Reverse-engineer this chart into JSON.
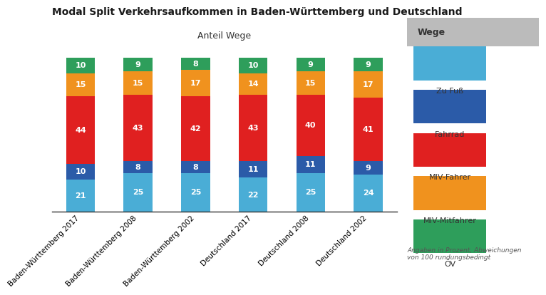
{
  "title": "Modal Split Verkehrsaufkommen in Baden-Württemberg und Deutschland",
  "subtitle": "Anteil Wege",
  "categories": [
    "Baden-Württemberg 2017",
    "Baden-Württemberg 2008",
    "Baden-Württemberg 2002",
    "Deutschland 2017",
    "Deutschland 2008",
    "Deutschland 2002"
  ],
  "segments": {
    "zu_fuss": [
      21,
      25,
      25,
      22,
      25,
      24
    ],
    "fahrrad": [
      10,
      8,
      8,
      11,
      11,
      9
    ],
    "miv_fahrer": [
      44,
      43,
      42,
      43,
      40,
      41
    ],
    "miv_mitfahr": [
      15,
      15,
      17,
      14,
      15,
      17
    ],
    "oev": [
      10,
      9,
      8,
      10,
      9,
      9
    ]
  },
  "colors": {
    "zu_fuss": "#4AADD6",
    "fahrrad": "#2B5BA8",
    "miv_fahrer": "#E02020",
    "miv_mitfahr": "#F0921E",
    "oev": "#2E9E5B"
  },
  "legend_labels": [
    "Zu Fuß",
    "Fahrrad",
    "MIV-Fahrer",
    "MIV-Mitfahrer",
    "ÖV"
  ],
  "legend_colors": [
    "#4AADD6",
    "#2B5BA8",
    "#E02020",
    "#F0921E",
    "#2E9E5B"
  ],
  "footnote": "Angaben in Prozent, Abweichungen\nvon 100 rundungsbedingt",
  "legend_title": "Wege",
  "bar_width": 0.5,
  "background_color": "#FFFFFF",
  "legend_bg": "#DDDDDD"
}
